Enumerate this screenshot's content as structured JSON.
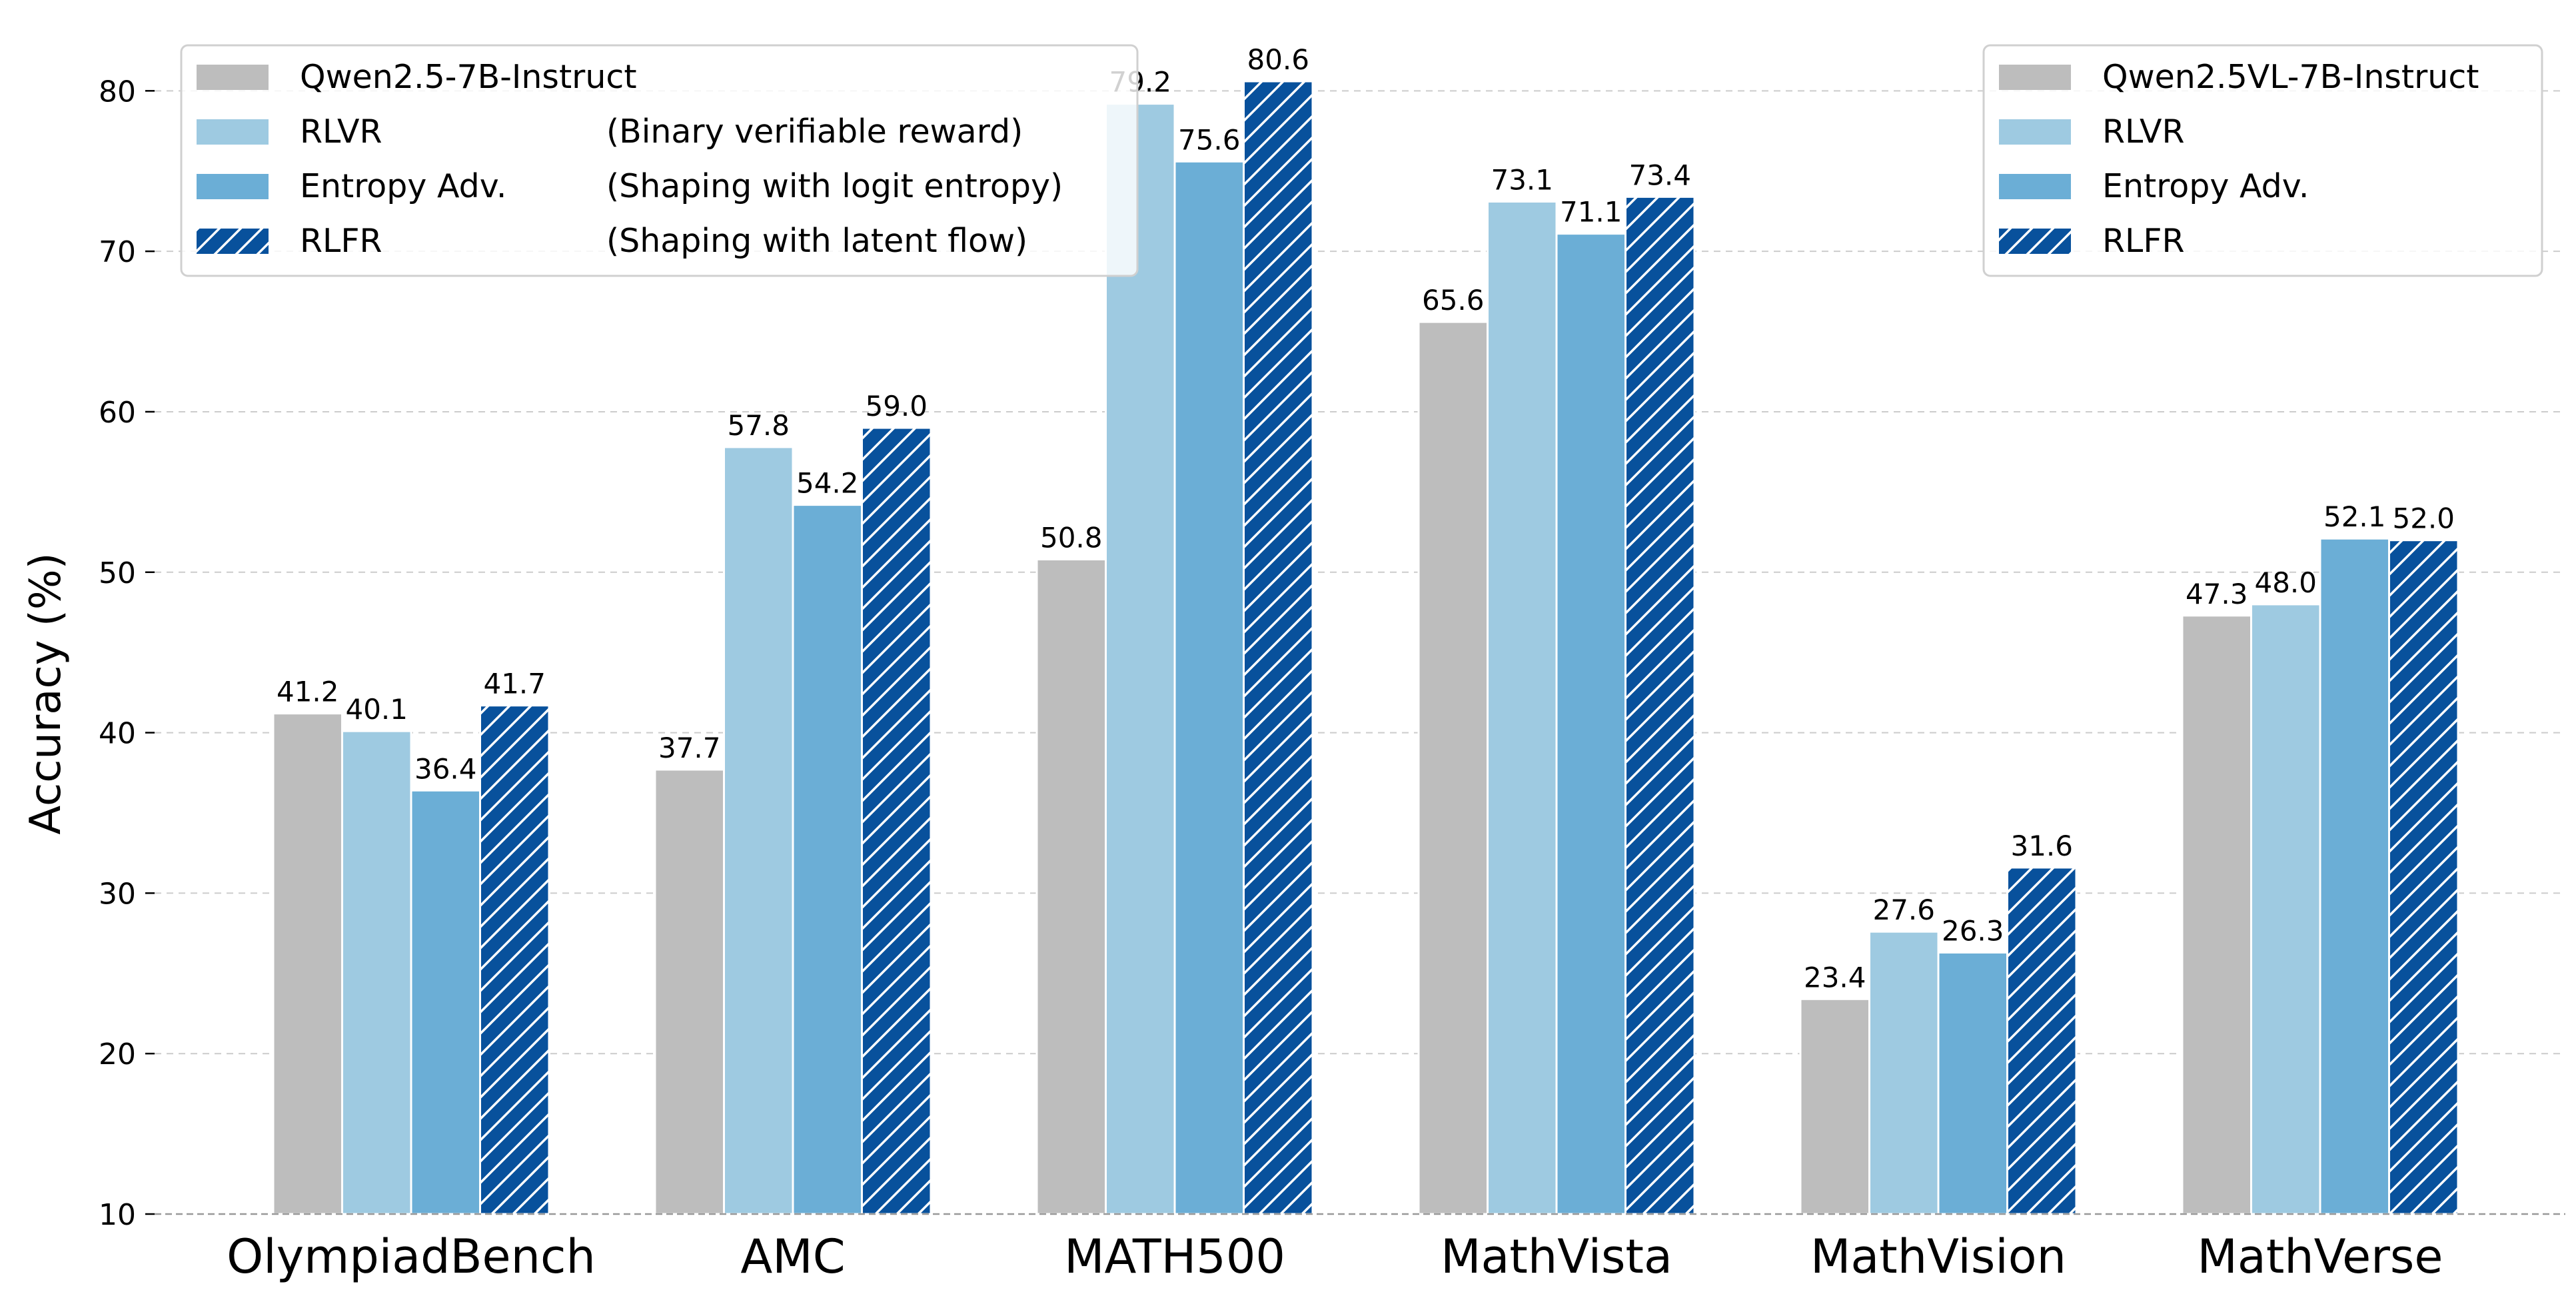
{
  "chart_data": {
    "type": "bar",
    "title": "",
    "xlabel": "",
    "ylabel": "Accuracy (%)",
    "ylim": [
      10,
      84
    ],
    "yticks": [
      10,
      20,
      30,
      40,
      50,
      60,
      70,
      80
    ],
    "grid": "horizontal dashed",
    "categories": [
      "OlympiadBench",
      "AMC",
      "MATH500",
      "MathVista",
      "MathVision",
      "MathVerse"
    ],
    "series": [
      {
        "name": "Qwen2.5-7B-Instruct",
        "color": "#bdbdbd",
        "hatch": false,
        "values": [
          41.2,
          37.7,
          50.8,
          null,
          null,
          null
        ]
      },
      {
        "name": "Qwen2.5VL-7B-Instruct",
        "color": "#bdbdbd",
        "hatch": false,
        "values": [
          null,
          null,
          null,
          65.6,
          23.4,
          47.3
        ]
      },
      {
        "name": "RLVR",
        "color": "#9ecae1",
        "hatch": false,
        "values": [
          40.1,
          57.8,
          79.2,
          73.1,
          27.6,
          48.0
        ]
      },
      {
        "name": "Entropy Adv.",
        "color": "#6baed6",
        "hatch": false,
        "values": [
          36.4,
          54.2,
          75.6,
          71.1,
          26.3,
          52.1
        ]
      },
      {
        "name": "RLFR",
        "color": "#08519c",
        "hatch": true,
        "values": [
          41.7,
          59.0,
          80.6,
          73.4,
          31.6,
          52.0
        ]
      }
    ],
    "legends": [
      {
        "placement": "top-left",
        "entries": [
          {
            "name": "Qwen2.5-7B-Instruct",
            "note": "",
            "color": "#bdbdbd",
            "hatch": false
          },
          {
            "name": "RLVR",
            "note": "(Binary verifiable reward)",
            "color": "#9ecae1",
            "hatch": false
          },
          {
            "name": "Entropy Adv.",
            "note": "(Shaping with logit entropy)",
            "color": "#6baed6",
            "hatch": false
          },
          {
            "name": "RLFR",
            "note": "(Shaping with latent flow)",
            "color": "#08519c",
            "hatch": true
          }
        ]
      },
      {
        "placement": "top-right",
        "entries": [
          {
            "name": "Qwen2.5VL-7B-Instruct",
            "note": "",
            "color": "#bdbdbd",
            "hatch": false
          },
          {
            "name": "RLVR",
            "note": "",
            "color": "#9ecae1",
            "hatch": false
          },
          {
            "name": "Entropy Adv.",
            "note": "",
            "color": "#6baed6",
            "hatch": false
          },
          {
            "name": "RLFR",
            "note": "",
            "color": "#08519c",
            "hatch": true
          }
        ]
      }
    ]
  }
}
